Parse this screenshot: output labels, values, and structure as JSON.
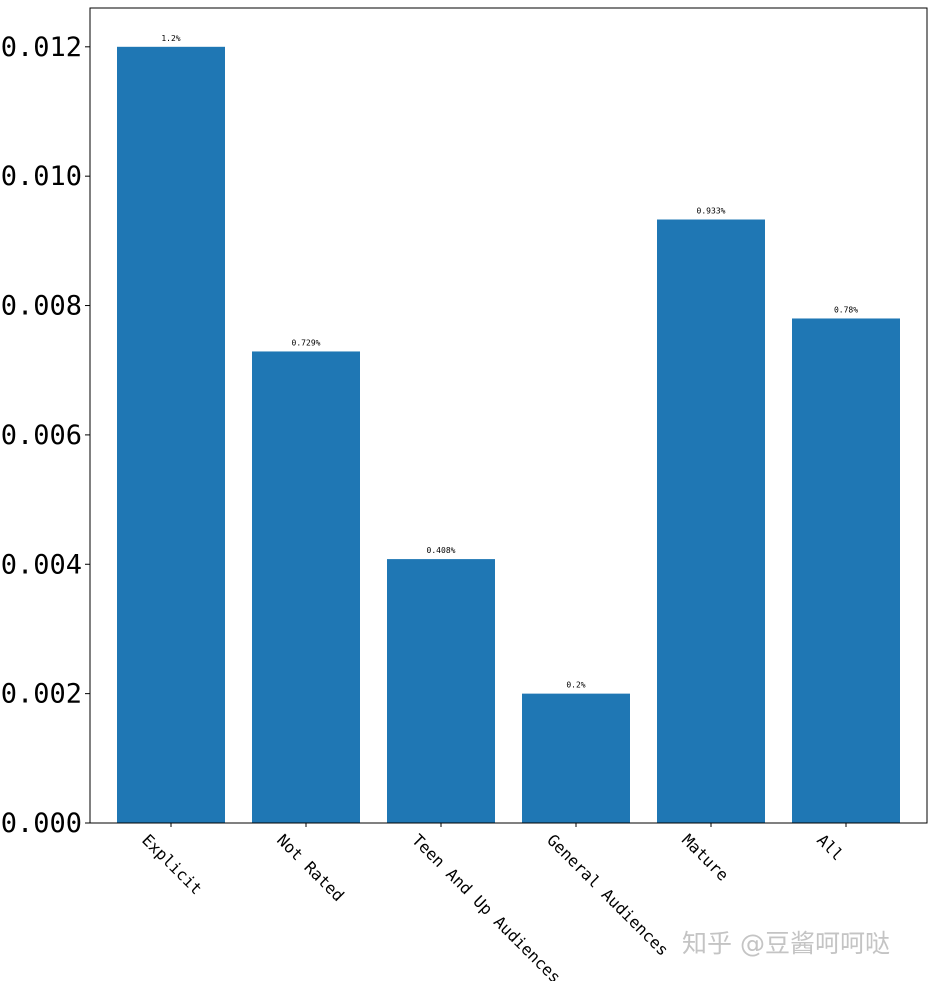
{
  "chart_data": {
    "type": "bar",
    "categories": [
      "Explicit",
      "Not Rated",
      "Teen And Up Audiences",
      "General Audiences",
      "Mature",
      "All"
    ],
    "values": [
      0.012,
      0.00729,
      0.00408,
      0.002,
      0.00933,
      0.0078
    ],
    "data_labels": [
      "1.2%",
      "0.729%",
      "0.408%",
      "0.2%",
      "0.933%",
      "0.78%"
    ],
    "ylim": [
      0,
      0.0126
    ],
    "yticks": [
      0.0,
      0.002,
      0.004,
      0.006,
      0.008,
      0.01,
      0.012
    ],
    "ytick_labels": [
      "0.000",
      "0.002",
      "0.004",
      "0.006",
      "0.008",
      "0.010",
      "0.012"
    ],
    "x_tick_rotation_deg": 45,
    "bar_color": "#1f77b4",
    "grid": false,
    "title": "",
    "xlabel": "",
    "ylabel": ""
  },
  "watermark": {
    "text": "知乎 @豆酱呵呵哒"
  }
}
